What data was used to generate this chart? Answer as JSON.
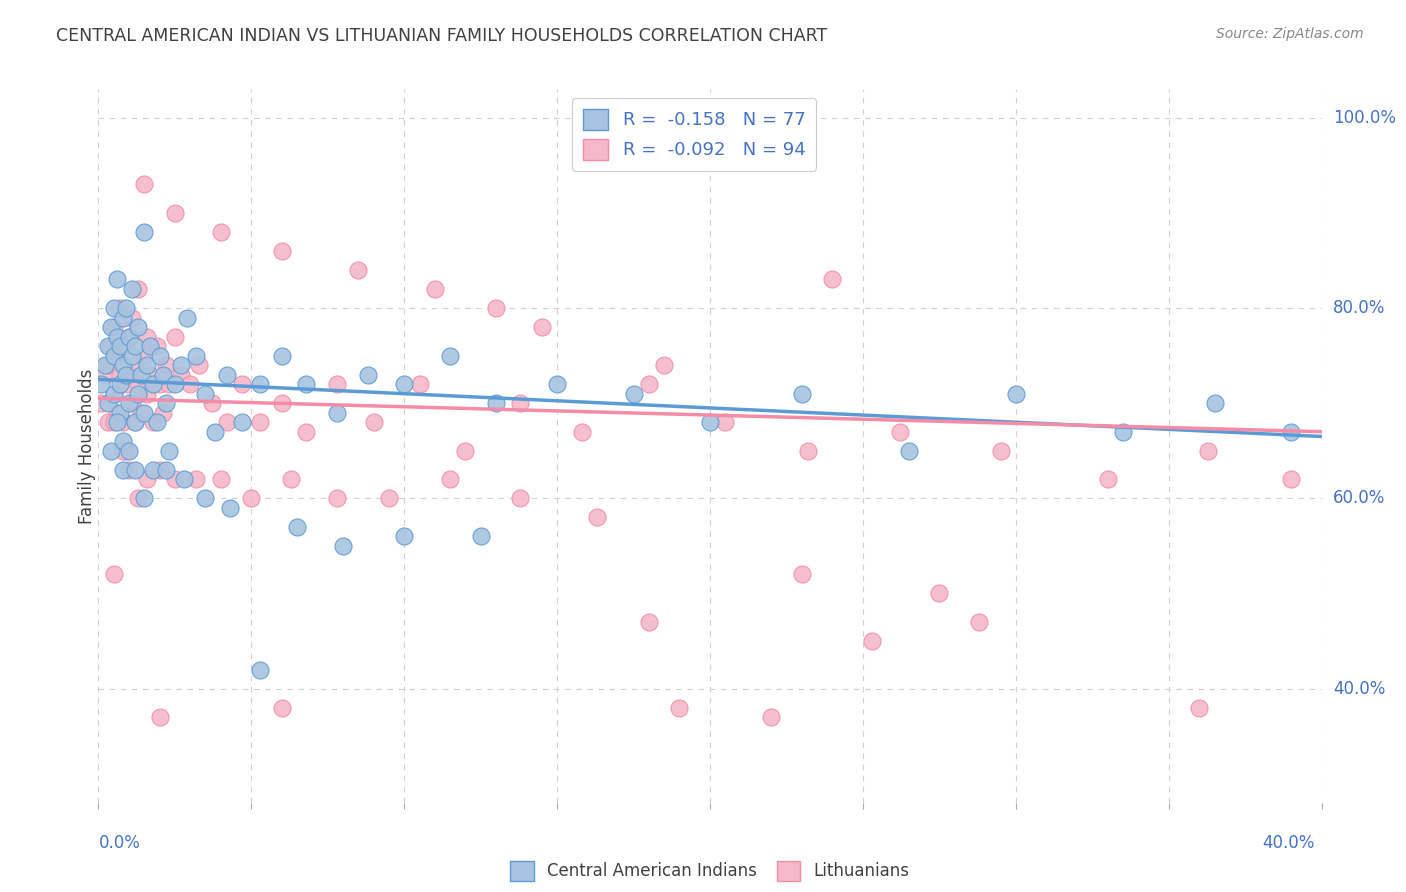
{
  "title": "CENTRAL AMERICAN INDIAN VS LITHUANIAN FAMILY HOUSEHOLDS CORRELATION CHART",
  "source": "Source: ZipAtlas.com",
  "ylabel": "Family Households",
  "color_blue": "#a8c4e0",
  "color_pink": "#f4b8c8",
  "color_blue_line": "#5b9bd5",
  "color_pink_line": "#f48ca8",
  "title_color": "#404040",
  "axis_label_color": "#4472c4",
  "legend_text_color": "#4472c4",
  "blue_scatter_x": [
    0.001,
    0.002,
    0.003,
    0.003,
    0.004,
    0.004,
    0.005,
    0.005,
    0.005,
    0.006,
    0.006,
    0.007,
    0.007,
    0.007,
    0.008,
    0.008,
    0.008,
    0.009,
    0.009,
    0.01,
    0.01,
    0.011,
    0.011,
    0.012,
    0.012,
    0.013,
    0.013,
    0.014,
    0.015,
    0.015,
    0.016,
    0.017,
    0.018,
    0.019,
    0.02,
    0.021,
    0.022,
    0.023,
    0.025,
    0.027,
    0.029,
    0.032,
    0.035,
    0.038,
    0.042,
    0.047,
    0.053,
    0.06,
    0.068,
    0.078,
    0.088,
    0.1,
    0.115,
    0.13,
    0.15,
    0.175,
    0.2,
    0.23,
    0.265,
    0.3,
    0.335,
    0.365,
    0.39,
    0.006,
    0.008,
    0.01,
    0.012,
    0.015,
    0.018,
    0.022,
    0.028,
    0.035,
    0.043,
    0.053,
    0.065,
    0.08,
    0.1,
    0.125
  ],
  "blue_scatter_y": [
    0.72,
    0.74,
    0.76,
    0.7,
    0.78,
    0.65,
    0.8,
    0.75,
    0.71,
    0.77,
    0.83,
    0.76,
    0.72,
    0.69,
    0.79,
    0.74,
    0.66,
    0.8,
    0.73,
    0.77,
    0.7,
    0.75,
    0.82,
    0.68,
    0.76,
    0.71,
    0.78,
    0.73,
    0.88,
    0.69,
    0.74,
    0.76,
    0.72,
    0.68,
    0.75,
    0.73,
    0.7,
    0.65,
    0.72,
    0.74,
    0.79,
    0.75,
    0.71,
    0.67,
    0.73,
    0.68,
    0.72,
    0.75,
    0.72,
    0.69,
    0.73,
    0.72,
    0.75,
    0.7,
    0.72,
    0.71,
    0.68,
    0.71,
    0.65,
    0.71,
    0.67,
    0.7,
    0.67,
    0.68,
    0.63,
    0.65,
    0.63,
    0.6,
    0.63,
    0.63,
    0.62,
    0.6,
    0.59,
    0.42,
    0.57,
    0.55,
    0.56,
    0.56
  ],
  "pink_scatter_x": [
    0.001,
    0.002,
    0.003,
    0.003,
    0.004,
    0.005,
    0.005,
    0.006,
    0.006,
    0.007,
    0.007,
    0.008,
    0.008,
    0.009,
    0.009,
    0.01,
    0.01,
    0.011,
    0.011,
    0.012,
    0.012,
    0.013,
    0.013,
    0.014,
    0.015,
    0.016,
    0.016,
    0.017,
    0.018,
    0.019,
    0.02,
    0.021,
    0.022,
    0.023,
    0.025,
    0.027,
    0.03,
    0.033,
    0.037,
    0.042,
    0.047,
    0.053,
    0.06,
    0.068,
    0.078,
    0.09,
    0.105,
    0.12,
    0.138,
    0.158,
    0.18,
    0.205,
    0.232,
    0.262,
    0.295,
    0.33,
    0.363,
    0.39,
    0.005,
    0.008,
    0.01,
    0.013,
    0.016,
    0.02,
    0.025,
    0.032,
    0.04,
    0.05,
    0.063,
    0.078,
    0.095,
    0.115,
    0.138,
    0.163,
    0.19,
    0.22,
    0.253,
    0.288,
    0.015,
    0.025,
    0.04,
    0.06,
    0.085,
    0.11,
    0.145,
    0.185,
    0.23,
    0.275,
    0.005,
    0.02,
    0.06,
    0.18,
    0.36,
    0.24,
    0.13
  ],
  "pink_scatter_y": [
    0.7,
    0.73,
    0.74,
    0.68,
    0.76,
    0.71,
    0.78,
    0.69,
    0.75,
    0.73,
    0.8,
    0.68,
    0.76,
    0.72,
    0.65,
    0.77,
    0.73,
    0.79,
    0.7,
    0.74,
    0.68,
    0.82,
    0.72,
    0.69,
    0.75,
    0.71,
    0.77,
    0.73,
    0.68,
    0.76,
    0.72,
    0.69,
    0.74,
    0.72,
    0.77,
    0.73,
    0.72,
    0.74,
    0.7,
    0.68,
    0.72,
    0.68,
    0.7,
    0.67,
    0.72,
    0.68,
    0.72,
    0.65,
    0.7,
    0.67,
    0.72,
    0.68,
    0.65,
    0.67,
    0.65,
    0.62,
    0.65,
    0.62,
    0.68,
    0.65,
    0.63,
    0.6,
    0.62,
    0.63,
    0.62,
    0.62,
    0.62,
    0.6,
    0.62,
    0.6,
    0.6,
    0.62,
    0.6,
    0.58,
    0.38,
    0.37,
    0.45,
    0.47,
    0.93,
    0.9,
    0.88,
    0.86,
    0.84,
    0.82,
    0.78,
    0.74,
    0.52,
    0.5,
    0.52,
    0.37,
    0.38,
    0.47,
    0.38,
    0.83,
    0.8
  ],
  "xlim": [
    0.0,
    0.4
  ],
  "ylim": [
    0.28,
    1.03
  ],
  "blue_line_x": [
    0.0,
    0.4
  ],
  "blue_line_y": [
    0.725,
    0.665
  ],
  "pink_line_x": [
    0.0,
    0.4
  ],
  "pink_line_y": [
    0.705,
    0.67
  ],
  "y_ticks": [
    0.4,
    0.6,
    0.8,
    1.0
  ],
  "y_tick_labels": [
    "40.0%",
    "60.0%",
    "80.0%",
    "100.0%"
  ],
  "x_ticks": [
    0.0,
    0.05,
    0.1,
    0.15,
    0.2,
    0.25,
    0.3,
    0.35,
    0.4
  ],
  "grid_color": "#d0d0d0",
  "background_color": "#ffffff"
}
